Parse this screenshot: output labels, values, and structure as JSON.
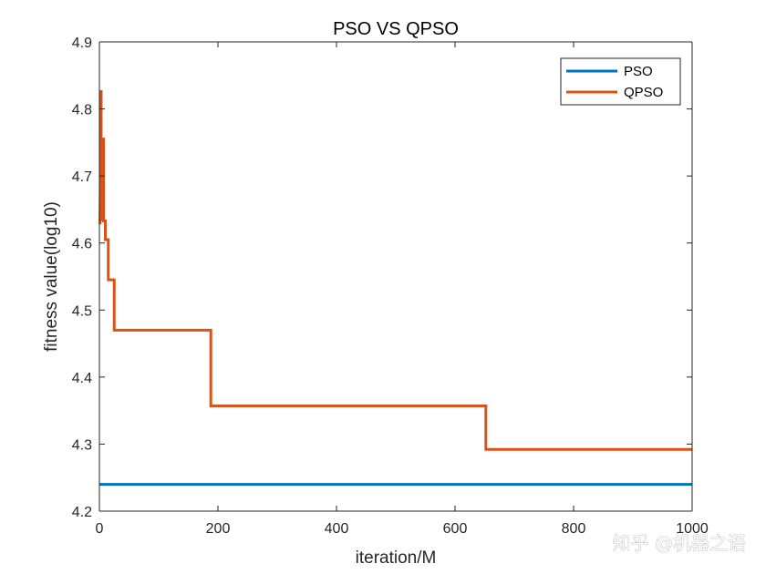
{
  "chart_data": {
    "type": "line",
    "title": "PSO VS QPSO",
    "xlabel": "iteration/M",
    "ylabel": "fitness value(log10)",
    "xlim": [
      0,
      1000
    ],
    "ylim": [
      4.2,
      4.9
    ],
    "xticks": [
      "0",
      "200",
      "400",
      "600",
      "800",
      "1000"
    ],
    "yticks": [
      "4.2",
      "4.3",
      "4.4",
      "4.5",
      "4.6",
      "4.7",
      "4.8",
      "4.9"
    ],
    "legend_position": "top-right",
    "grid": false,
    "series": [
      {
        "name": "PSO",
        "color": "#0072BD",
        "x": [
          0,
          1000
        ],
        "y": [
          4.24,
          4.24
        ]
      },
      {
        "name": "QPSO",
        "color": "#D95319",
        "x": [
          1,
          3,
          3,
          5,
          5,
          7,
          7,
          10,
          10,
          15,
          15,
          22,
          22,
          25,
          25,
          188,
          188,
          652,
          652,
          1000
        ],
        "y": [
          4.628,
          4.828,
          4.635,
          4.635,
          4.755,
          4.755,
          4.633,
          4.633,
          4.605,
          4.605,
          4.545,
          4.545,
          4.545,
          4.545,
          4.47,
          4.47,
          4.357,
          4.357,
          4.292,
          4.292
        ]
      }
    ]
  },
  "watermark": "知乎 @机器之语"
}
